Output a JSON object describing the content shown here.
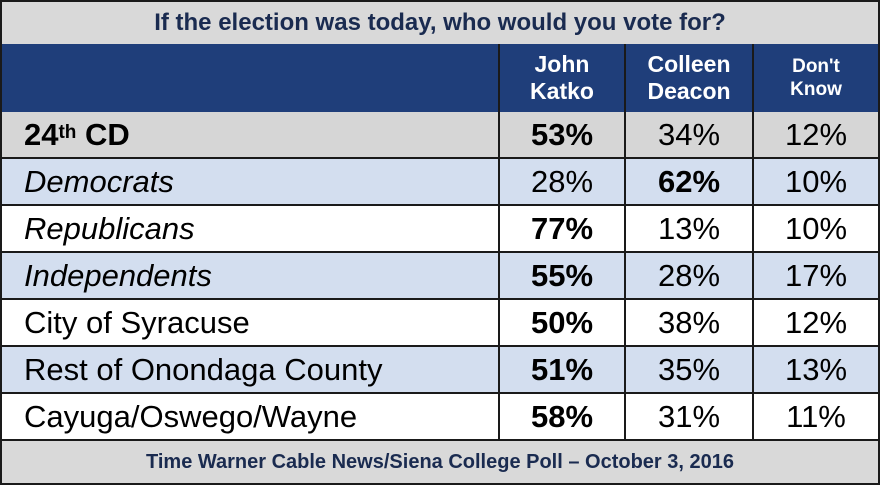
{
  "chart_data": {
    "type": "table",
    "title": "If the election was today, who would you vote for?",
    "columns": [
      "",
      "John\nKatko",
      "Colleen\nDeacon",
      "Don't\nKnow"
    ],
    "rows": [
      {
        "label_main": "24",
        "label_sup": "th",
        "label_rest": " CD",
        "values": [
          "53%",
          "34%",
          "12%"
        ]
      },
      {
        "label": "Democrats",
        "values": [
          "28%",
          "62%",
          "10%"
        ]
      },
      {
        "label": "Republicans",
        "values": [
          "77%",
          "13%",
          "10%"
        ]
      },
      {
        "label": "Independents",
        "values": [
          "55%",
          "28%",
          "17%"
        ]
      },
      {
        "label": "City of Syracuse",
        "values": [
          "50%",
          "38%",
          "12%"
        ]
      },
      {
        "label": "Rest of Onondaga County",
        "values": [
          "51%",
          "35%",
          "13%"
        ]
      },
      {
        "label": "Cayuga/Oswego/Wayne",
        "values": [
          "58%",
          "31%",
          "11%"
        ]
      }
    ],
    "source": "Time Warner Cable News/Siena College Poll – October 3, 2016"
  },
  "colors": {
    "header_bg": "#1f3e7a",
    "title_bg": "#d9d9d9",
    "row_grey": "#d6d6d6",
    "row_blue": "#d3deef",
    "title_text": "#1a2b50"
  }
}
